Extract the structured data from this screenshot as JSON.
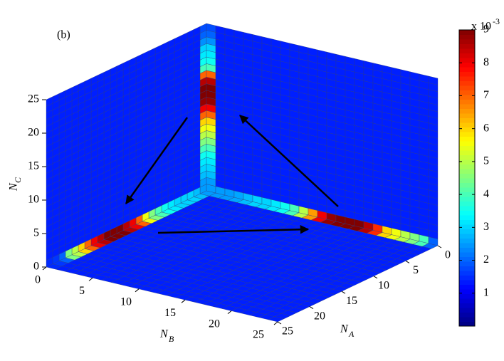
{
  "chart_data": {
    "type": "voxel3d",
    "panel_label": "(b)",
    "xlabel": {
      "text": "N",
      "sub": "A"
    },
    "ylabel": {
      "text": "N",
      "sub": "B"
    },
    "zlabel": {
      "text": "N",
      "sub": "C"
    },
    "xlim": [
      0,
      25
    ],
    "ylim": [
      0,
      25
    ],
    "zlim": [
      0,
      25
    ],
    "xticks": [
      0,
      5,
      10,
      15,
      20,
      25
    ],
    "yticks": [
      0,
      5,
      10,
      15,
      20,
      25
    ],
    "zticks": [
      0,
      5,
      10,
      15,
      20,
      25
    ],
    "colormap": "jet",
    "clim": [
      0,
      9
    ],
    "cticks": [
      1,
      2,
      3,
      4,
      5,
      6,
      7,
      8,
      9
    ],
    "colorbar_scale": {
      "base": "x 10",
      "exponent": "-3"
    },
    "background": 1.4,
    "ridge_a": [
      2.5,
      2.8,
      3.0,
      3.0,
      3.0,
      3.2,
      3.5,
      4.0,
      4.5,
      5.5,
      7.0,
      8.0,
      8.5,
      9.0,
      9.0,
      9.0,
      8.5,
      8.0,
      7.0,
      6.0,
      5.0,
      4.5,
      2.0,
      1.6,
      1.5
    ],
    "ridge_b": [
      2.5,
      2.5,
      2.5,
      2.6,
      2.8,
      3.0,
      3.0,
      3.2,
      3.5,
      4.0,
      5.0,
      6.5,
      8.0,
      8.8,
      9.0,
      9.0,
      9.0,
      8.5,
      7.5,
      6.0,
      5.5,
      5.0,
      4.5,
      4.0,
      2.0
    ],
    "ridge_c": [
      2.2,
      2.5,
      2.8,
      3.0,
      3.2,
      3.5,
      4.0,
      4.5,
      5.0,
      5.5,
      6.0,
      7.0,
      8.0,
      8.8,
      9.0,
      9.0,
      8.5,
      7.0,
      4.0,
      3.5,
      3.2,
      3.0,
      2.4,
      2.0,
      1.8
    ]
  }
}
